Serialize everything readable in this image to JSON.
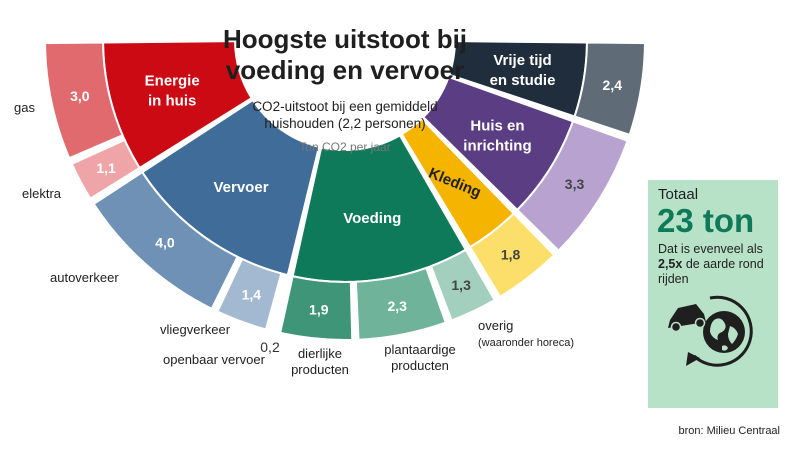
{
  "header": {
    "title_line1": "Hoogste uitstoot bij",
    "title_line2": "voeding en vervoer",
    "subtitle_line1": "CO2-uitstoot bij een gemiddeld",
    "subtitle_line2": "huishouden (2,2 personen)",
    "unit": "Ton CO2 per jaar"
  },
  "totaal": {
    "label": "Totaal",
    "value": "23 ton",
    "text_pre": "Dat is evenveel als ",
    "text_bold": "2,5x",
    "text_post": " de aarde rond rijden",
    "icons": [
      "car-icon",
      "globe-icon",
      "circular-arrow-icon"
    ]
  },
  "source": "bron: Milieu Centraal",
  "colors": {
    "energie": "#cc0a14",
    "vervoer": "#3f6c98",
    "voeding": "#0f7a5a",
    "kleding": "#f5b400",
    "huis": "#5a3d82",
    "vrije_tijd": "#1f2d3d",
    "total_box": "#b8e2c8"
  },
  "chart_data": {
    "type": "sunburst",
    "unit": "Ton CO2 per jaar",
    "total": 23,
    "categories": [
      {
        "name": "Energie\nin huis",
        "color": "#cc0a14",
        "sub": [
          {
            "label": "gas",
            "value": 3.0,
            "display": "3,0",
            "color": "#e06a6e"
          },
          {
            "label": "elektra",
            "value": 1.1,
            "display": "1,1",
            "color": "#efa5a8"
          }
        ]
      },
      {
        "name": "Vervoer",
        "color": "#3f6c98",
        "sub": [
          {
            "label": "autoverkeer",
            "value": 4.0,
            "display": "4,0",
            "color": "#6f91b5"
          },
          {
            "label": "vliegverkeer",
            "value": 1.4,
            "display": "1,4",
            "color": "#a3b9d1"
          },
          {
            "label": "openbaar vervoer",
            "value": 0.2,
            "display": "0,2",
            "color": "#c9d6e4"
          }
        ]
      },
      {
        "name": "Voeding",
        "color": "#0f7a5a",
        "sub": [
          {
            "label": "dierlijke\nproducten",
            "value": 1.9,
            "display": "1,9",
            "color": "#3f9577"
          },
          {
            "label": "plantaardige\nproducten",
            "value": 2.3,
            "display": "2,3",
            "color": "#6fb49a"
          },
          {
            "label": "overig\n(waaronder horeca)",
            "value": 1.3,
            "display": "1,3",
            "color": "#a3cfbf"
          }
        ]
      },
      {
        "name": "Kleding",
        "color": "#f5b400",
        "sub": [
          {
            "label": "",
            "value": 1.8,
            "display": "1,8",
            "color": "#fcdf6a"
          }
        ]
      },
      {
        "name": "Huis en\ninrichting",
        "color": "#5a3d82",
        "sub": [
          {
            "label": "",
            "value": 3.3,
            "display": "3,3",
            "color": "#b7a2d0"
          }
        ]
      },
      {
        "name": "Vrije tijd\nen studie",
        "color": "#1f2d3d",
        "sub": [
          {
            "label": "",
            "value": 2.4,
            "display": "2,4",
            "color": "#5f6b76"
          }
        ]
      }
    ]
  }
}
